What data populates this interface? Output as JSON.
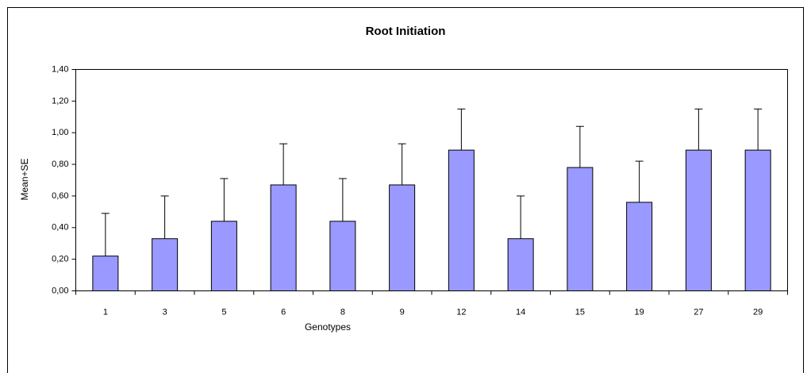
{
  "chart_data": {
    "type": "bar",
    "title": "Root Initiation",
    "x_label": "Genotypes",
    "y_label": "Mean+SE",
    "categories": [
      "1",
      "3",
      "5",
      "6",
      "8",
      "9",
      "12",
      "14",
      "15",
      "19",
      "27",
      "29"
    ],
    "values": [
      0.22,
      0.33,
      0.44,
      0.67,
      0.44,
      0.67,
      0.89,
      0.33,
      0.78,
      0.56,
      0.89,
      0.89
    ],
    "errors": [
      0.27,
      0.27,
      0.27,
      0.26,
      0.27,
      0.26,
      0.26,
      0.27,
      0.26,
      0.26,
      0.26,
      0.26
    ],
    "color": "#9999ff",
    "ylim": [
      0,
      1.4
    ],
    "yticks": [
      {
        "value": 0,
        "label": "0,00"
      },
      {
        "value": 0.2,
        "label": "0,20"
      },
      {
        "value": 0.4,
        "label": "0,40"
      },
      {
        "value": 0.6,
        "label": "0,60"
      },
      {
        "value": 0.8,
        "label": "0,80"
      },
      {
        "value": 1.0,
        "label": "1,00"
      },
      {
        "value": 1.2,
        "label": "1,20"
      },
      {
        "value": 1.4,
        "label": "1,40"
      }
    ],
    "grid": false
  }
}
